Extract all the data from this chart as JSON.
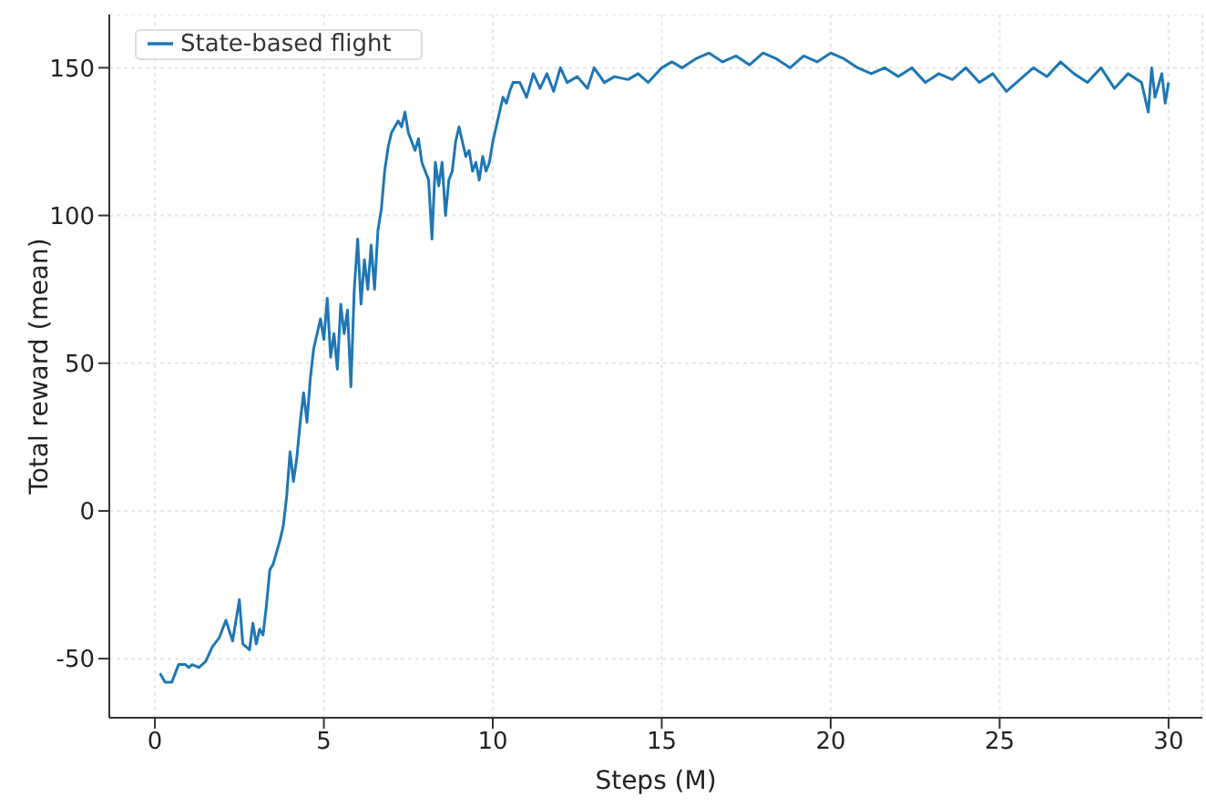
{
  "chart_data": {
    "type": "line",
    "xlabel": "Steps (M)",
    "ylabel": "Total reward (mean)",
    "xlim": [
      -1.35,
      31
    ],
    "ylim": [
      -70,
      168
    ],
    "xticks": [
      0,
      5,
      10,
      15,
      20,
      25,
      30
    ],
    "yticks": [
      -50,
      0,
      50,
      100,
      150
    ],
    "grid": true,
    "legend": "top left",
    "line_style": "solid",
    "marker": "none",
    "series": [
      {
        "name": "State-based flight",
        "color": "#1f77b4",
        "x": [
          0.15,
          0.3,
          0.5,
          0.6,
          0.7,
          0.9,
          1.0,
          1.1,
          1.3,
          1.5,
          1.7,
          1.9,
          2.1,
          2.3,
          2.5,
          2.6,
          2.8,
          2.9,
          3.0,
          3.1,
          3.2,
          3.3,
          3.4,
          3.5,
          3.6,
          3.7,
          3.8,
          3.9,
          4.0,
          4.1,
          4.2,
          4.3,
          4.4,
          4.5,
          4.6,
          4.7,
          4.8,
          4.9,
          5.0,
          5.1,
          5.2,
          5.3,
          5.4,
          5.5,
          5.6,
          5.7,
          5.8,
          5.9,
          6.0,
          6.1,
          6.2,
          6.3,
          6.4,
          6.5,
          6.6,
          6.7,
          6.8,
          6.9,
          7.0,
          7.1,
          7.2,
          7.3,
          7.4,
          7.5,
          7.6,
          7.7,
          7.8,
          7.9,
          8.0,
          8.1,
          8.2,
          8.3,
          8.4,
          8.5,
          8.6,
          8.7,
          8.8,
          8.9,
          9.0,
          9.1,
          9.2,
          9.3,
          9.4,
          9.5,
          9.6,
          9.7,
          9.8,
          9.9,
          10.0,
          10.1,
          10.2,
          10.3,
          10.4,
          10.5,
          10.6,
          10.8,
          11.0,
          11.2,
          11.4,
          11.6,
          11.8,
          12.0,
          12.2,
          12.5,
          12.8,
          13.0,
          13.3,
          13.6,
          14.0,
          14.3,
          14.6,
          15.0,
          15.3,
          15.6,
          16.0,
          16.4,
          16.8,
          17.2,
          17.6,
          18.0,
          18.4,
          18.8,
          19.2,
          19.6,
          20.0,
          20.4,
          20.8,
          21.2,
          21.6,
          22.0,
          22.4,
          22.8,
          23.2,
          23.6,
          24.0,
          24.4,
          24.8,
          25.2,
          25.6,
          26.0,
          26.4,
          26.8,
          27.2,
          27.6,
          28.0,
          28.4,
          28.8,
          29.2,
          29.4,
          29.5,
          29.6,
          29.7,
          29.8,
          29.9,
          30.0
        ],
        "values": [
          -55,
          -58,
          -58,
          -55,
          -52,
          -52,
          -53,
          -52,
          -53,
          -51,
          -46,
          -43,
          -37,
          -44,
          -30,
          -45,
          -47,
          -38,
          -45,
          -40,
          -42,
          -32,
          -20,
          -18,
          -14,
          -10,
          -5,
          5,
          20,
          10,
          18,
          30,
          40,
          30,
          45,
          55,
          60,
          65,
          58,
          72,
          52,
          60,
          48,
          70,
          60,
          68,
          42,
          75,
          92,
          70,
          85,
          75,
          90,
          75,
          95,
          102,
          115,
          123,
          128,
          130,
          132,
          130,
          135,
          128,
          125,
          122,
          126,
          118,
          115,
          112,
          92,
          118,
          110,
          118,
          100,
          112,
          115,
          125,
          130,
          125,
          120,
          122,
          115,
          118,
          112,
          120,
          115,
          118,
          125,
          130,
          135,
          140,
          138,
          142,
          145,
          145,
          140,
          148,
          143,
          148,
          142,
          150,
          145,
          147,
          143,
          150,
          145,
          147,
          146,
          148,
          145,
          150,
          152,
          150,
          153,
          155,
          152,
          154,
          151,
          155,
          153,
          150,
          154,
          152,
          155,
          153,
          150,
          148,
          150,
          147,
          150,
          145,
          148,
          146,
          150,
          145,
          148,
          142,
          146,
          150,
          147,
          152,
          148,
          145,
          150,
          143,
          148,
          145,
          135,
          150,
          140,
          144,
          148,
          138,
          145
        ]
      }
    ]
  }
}
